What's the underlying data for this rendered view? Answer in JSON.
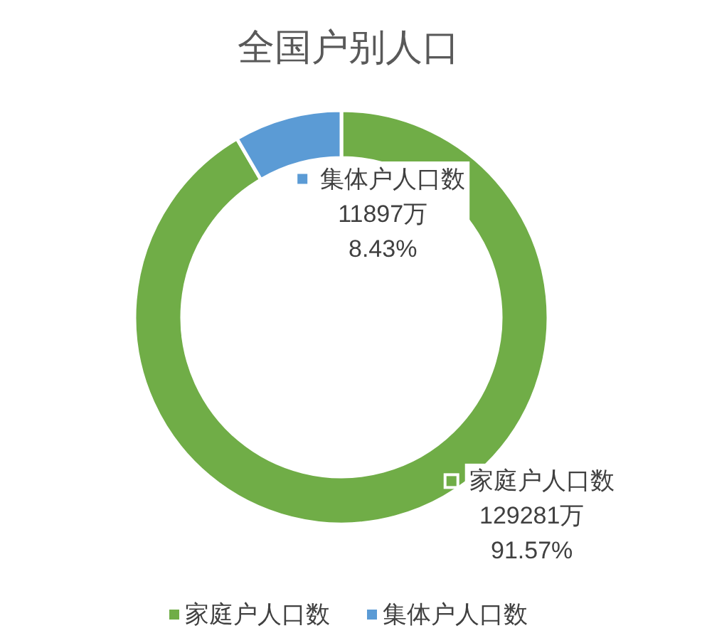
{
  "chart_data": {
    "type": "donut",
    "title": "全国户别人口",
    "categories": [
      "家庭户人口数",
      "集体户人口数"
    ],
    "values": [
      129281,
      11897
    ],
    "colors": [
      "#70ad47",
      "#5b9bd5"
    ],
    "value_labels": [
      "129281万\n91.57%",
      "11897万\n8.43%"
    ],
    "legend": "bottom"
  }
}
